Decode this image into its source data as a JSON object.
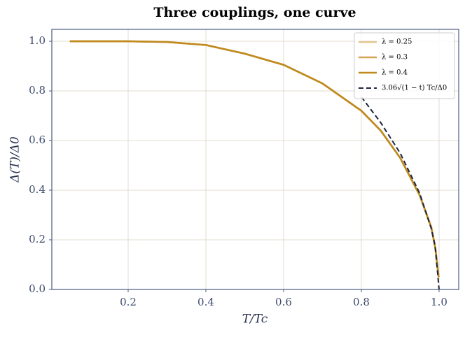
{
  "chart_data": {
    "type": "line",
    "title": "Three couplings, one curve",
    "x_label": "T/Tc",
    "y_label": "Δ(T)/Δ0",
    "xlim": [
      0.0036,
      1.0505
    ],
    "ylim": [
      0,
      1.048
    ],
    "xticks": [
      {
        "value": 0.2,
        "label": "0.2"
      },
      {
        "value": 0.4,
        "label": "0.4"
      },
      {
        "value": 0.6,
        "label": "0.6"
      },
      {
        "value": 0.8,
        "label": "0.8"
      },
      {
        "value": 1,
        "label": "1.0"
      }
    ],
    "yticks": [
      {
        "value": 0,
        "label": "0.0"
      },
      {
        "value": 0.2,
        "label": "0.2"
      },
      {
        "value": 0.4,
        "label": "0.4"
      },
      {
        "value": 0.6,
        "label": "0.6"
      },
      {
        "value": 0.8,
        "label": "0.8"
      },
      {
        "value": 1,
        "label": "1.0"
      }
    ],
    "grid": true,
    "legend": "upper right",
    "series": [
      {
        "name": "λ = 0.25",
        "color": "#e2c48c",
        "dash": false,
        "x": [
          0.05,
          0.1,
          0.2,
          0.3,
          0.4,
          0.5,
          0.6,
          0.7,
          0.8,
          0.85,
          0.9,
          0.95,
          0.98,
          0.99,
          0.999
        ],
        "values": [
          1,
          1,
          1,
          0.997,
          0.985,
          0.95,
          0.905,
          0.83,
          0.72,
          0.64,
          0.53,
          0.38,
          0.25,
          0.17,
          0.05
        ]
      },
      {
        "name": "λ = 0.3",
        "color": "#d4a559",
        "dash": false,
        "x": [
          0.05,
          0.1,
          0.2,
          0.3,
          0.4,
          0.5,
          0.6,
          0.7,
          0.8,
          0.85,
          0.9,
          0.95,
          0.98,
          0.99,
          0.999
        ],
        "values": [
          1,
          1,
          1,
          0.997,
          0.985,
          0.95,
          0.905,
          0.83,
          0.72,
          0.64,
          0.53,
          0.38,
          0.25,
          0.17,
          0.05
        ]
      },
      {
        "name": "λ = 0.4",
        "color": "#bf8a1e",
        "dash": false,
        "x": [
          0.05,
          0.1,
          0.2,
          0.3,
          0.4,
          0.5,
          0.6,
          0.7,
          0.8,
          0.85,
          0.9,
          0.95,
          0.98,
          0.99,
          0.999
        ],
        "values": [
          1,
          1,
          1,
          0.997,
          0.985,
          0.95,
          0.905,
          0.83,
          0.72,
          0.64,
          0.53,
          0.38,
          0.25,
          0.17,
          0.05
        ]
      },
      {
        "name": "3.06√(1 − t) Tc/Δ0",
        "color": "#1c2540",
        "dash": true,
        "x": [
          0.8,
          0.85,
          0.9,
          0.95,
          0.98,
          0.99,
          1
        ],
        "values": [
          0.776,
          0.672,
          0.549,
          0.388,
          0.245,
          0.174,
          0
        ]
      }
    ]
  }
}
